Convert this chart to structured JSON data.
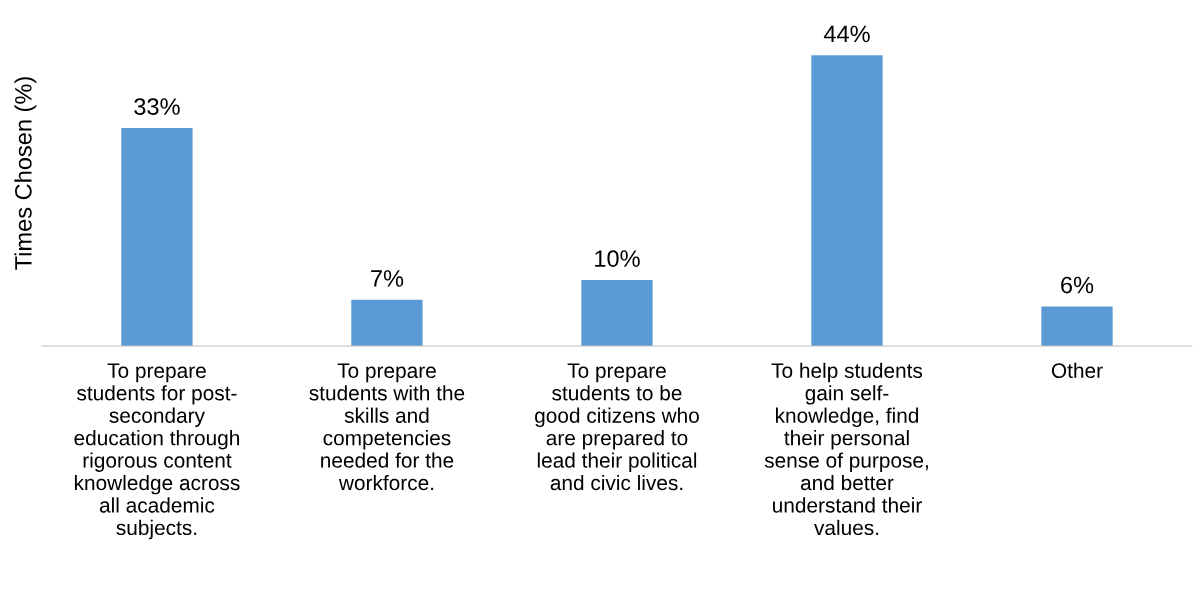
{
  "chart_data": {
    "type": "bar",
    "ylabel": "Times Chosen (%)",
    "categories": [
      "To prepare\nstudents for post-\nsecondary\neducation through\nrigorous content\nknowledge across\nall academic\nsubjects.",
      "To prepare\nstudents with the\nskills and\ncompetencies\nneeded for the\nworkforce.",
      "To prepare\nstudents to be\ngood citizens who\nare prepared to\nlead their political\nand civic lives.",
      "To help students\ngain self-\nknowledge, find\ntheir personal\nsense of purpose,\nand better\nunderstand their\nvalues.",
      "Other"
    ],
    "values": [
      33,
      7,
      10,
      44,
      6
    ],
    "value_labels": [
      "33%",
      "7%",
      "10%",
      "44%",
      "6%"
    ],
    "color": "#5b9bd5",
    "grid": false,
    "legend": false,
    "tick_labels": "x"
  }
}
